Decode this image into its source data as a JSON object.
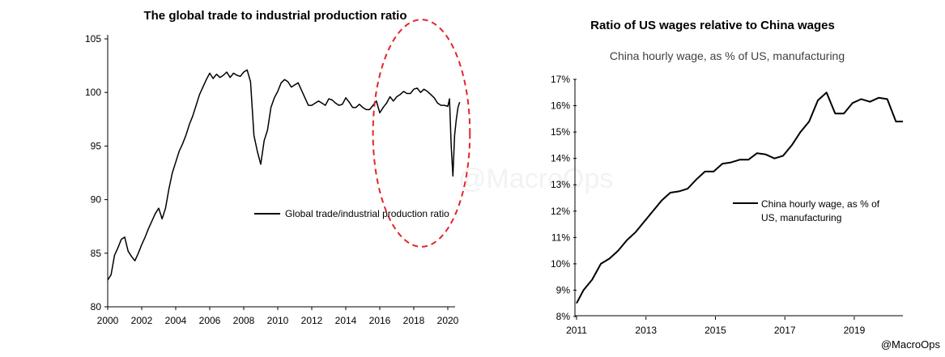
{
  "watermark": "@MacroOps",
  "credit": "@MacroOps",
  "chart_data": [
    {
      "type": "line",
      "title": "The global trade to industrial production ratio",
      "xlabel": "",
      "ylabel": "",
      "xlim": [
        2000,
        2021
      ],
      "ylim": [
        80,
        105
      ],
      "xticks": [
        2000,
        2002,
        2004,
        2006,
        2008,
        2010,
        2012,
        2014,
        2016,
        2018,
        2020
      ],
      "yticks": [
        80,
        85,
        90,
        95,
        100,
        105
      ],
      "legend": {
        "label": "Global trade/industrial production ratio",
        "position": "center-right"
      },
      "annotation": {
        "type": "dashed-circle",
        "color": "#e3262a",
        "center_x": 2018.45,
        "center_y": 96.2,
        "radius_x": 2.85,
        "radius_y": 10.6
      },
      "series": [
        {
          "name": "Global trade/industrial production ratio",
          "x": [
            2000.0,
            2000.2,
            2000.4,
            2000.6,
            2000.8,
            2001.0,
            2001.2,
            2001.4,
            2001.6,
            2001.8,
            2002.0,
            2002.2,
            2002.4,
            2002.6,
            2002.8,
            2003.0,
            2003.2,
            2003.4,
            2003.6,
            2003.8,
            2004.0,
            2004.2,
            2004.4,
            2004.6,
            2004.8,
            2005.0,
            2005.2,
            2005.4,
            2005.6,
            2005.8,
            2006.0,
            2006.2,
            2006.4,
            2006.6,
            2006.8,
            2007.0,
            2007.2,
            2007.4,
            2007.6,
            2007.8,
            2008.0,
            2008.2,
            2008.4,
            2008.6,
            2008.8,
            2009.0,
            2009.2,
            2009.4,
            2009.6,
            2009.8,
            2010.0,
            2010.2,
            2010.4,
            2010.6,
            2010.8,
            2011.0,
            2011.2,
            2011.4,
            2011.6,
            2011.8,
            2012.0,
            2012.2,
            2012.4,
            2012.6,
            2012.8,
            2013.0,
            2013.2,
            2013.4,
            2013.6,
            2013.8,
            2014.0,
            2014.2,
            2014.4,
            2014.6,
            2014.8,
            2015.0,
            2015.2,
            2015.4,
            2015.6,
            2015.8,
            2016.0,
            2016.2,
            2016.4,
            2016.6,
            2016.8,
            2017.0,
            2017.2,
            2017.4,
            2017.6,
            2017.8,
            2018.0,
            2018.2,
            2018.4,
            2018.6,
            2018.8,
            2019.0,
            2019.2,
            2019.4,
            2019.6,
            2019.8,
            2020.0,
            2020.1,
            2020.2,
            2020.3,
            2020.4,
            2020.5,
            2020.6,
            2020.7
          ],
          "values": [
            82.5,
            83.0,
            84.8,
            85.5,
            86.3,
            86.5,
            85.2,
            84.7,
            84.3,
            85.0,
            85.8,
            86.5,
            87.3,
            88.0,
            88.7,
            89.2,
            88.2,
            89.2,
            91.0,
            92.5,
            93.5,
            94.5,
            95.2,
            96.0,
            97.0,
            97.8,
            98.8,
            99.8,
            100.5,
            101.2,
            101.8,
            101.3,
            101.7,
            101.4,
            101.6,
            101.9,
            101.4,
            101.8,
            101.6,
            101.5,
            101.9,
            102.1,
            101.0,
            96.0,
            94.5,
            93.3,
            95.5,
            96.5,
            98.6,
            99.5,
            100.1,
            100.9,
            101.2,
            101.0,
            100.5,
            100.7,
            100.9,
            100.2,
            99.5,
            98.8,
            98.8,
            99.0,
            99.2,
            99.0,
            98.8,
            99.4,
            99.3,
            99.0,
            98.8,
            98.9,
            99.5,
            99.1,
            98.6,
            98.6,
            98.9,
            98.6,
            98.4,
            98.4,
            98.8,
            99.2,
            98.1,
            98.6,
            99.0,
            99.6,
            99.2,
            99.6,
            99.8,
            100.1,
            99.9,
            99.9,
            100.3,
            100.4,
            100.0,
            100.3,
            100.1,
            99.8,
            99.5,
            99.0,
            98.8,
            98.8,
            98.7,
            99.4,
            95.0,
            92.2,
            96.0,
            97.5,
            98.6,
            99.1
          ]
        }
      ]
    },
    {
      "type": "line",
      "title": "Ratio of US wages relative to China wages",
      "subtitle": "China hourly wage, as % of US, manufacturing",
      "xlabel": "",
      "ylabel": "",
      "xlim": [
        2011,
        2020.4
      ],
      "ylim": [
        8,
        17
      ],
      "xticks": [
        2011,
        2013,
        2015,
        2017,
        2019
      ],
      "yticks": [
        8,
        9,
        10,
        11,
        12,
        13,
        14,
        15,
        16,
        17
      ],
      "ytick_labels": [
        "8%",
        "9%",
        "10%",
        "11%",
        "12%",
        "13%",
        "14%",
        "15%",
        "16%",
        "17%"
      ],
      "legend": {
        "label_lines": [
          "China hourly wage, as % of",
          "US, manufacturing"
        ],
        "position": "center-right"
      },
      "series": [
        {
          "name": "China hourly wage, as % of US, manufacturing",
          "x": [
            2011.0,
            2011.2,
            2011.45,
            2011.7,
            2011.95,
            2012.2,
            2012.45,
            2012.7,
            2012.95,
            2013.2,
            2013.45,
            2013.7,
            2013.95,
            2014.2,
            2014.45,
            2014.7,
            2014.95,
            2015.2,
            2015.45,
            2015.7,
            2015.95,
            2016.2,
            2016.45,
            2016.7,
            2016.95,
            2017.2,
            2017.45,
            2017.7,
            2017.95,
            2018.2,
            2018.45,
            2018.7,
            2018.95,
            2019.2,
            2019.45,
            2019.7,
            2019.95,
            2020.2,
            2020.4
          ],
          "values": [
            8.5,
            9.0,
            9.4,
            10.0,
            10.2,
            10.5,
            10.9,
            11.2,
            11.6,
            12.0,
            12.4,
            12.7,
            12.75,
            12.85,
            13.2,
            13.5,
            13.5,
            13.8,
            13.85,
            13.95,
            13.95,
            14.2,
            14.15,
            14.0,
            14.1,
            14.5,
            15.0,
            15.4,
            16.2,
            16.5,
            15.7,
            15.7,
            16.1,
            16.25,
            16.15,
            16.3,
            16.25,
            15.4,
            15.4
          ]
        }
      ]
    }
  ]
}
